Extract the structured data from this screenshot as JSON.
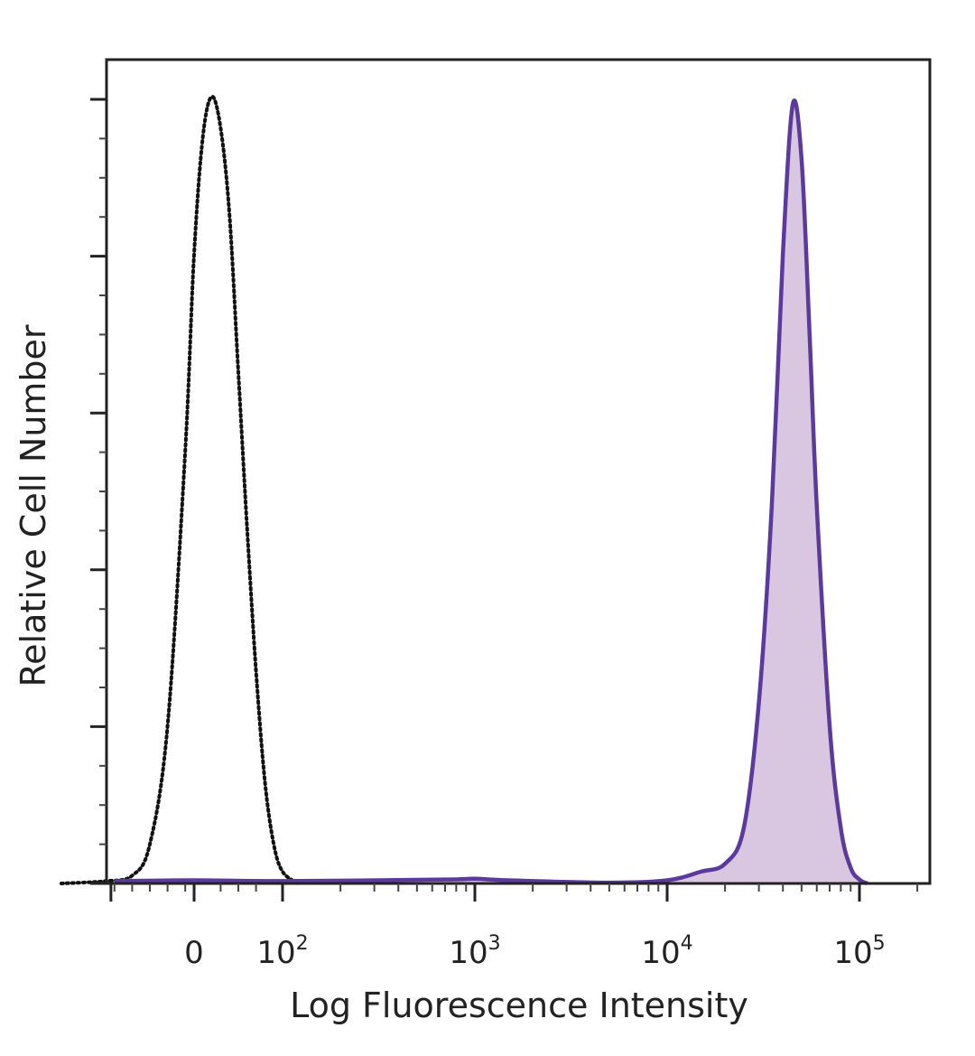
{
  "chart_data": {
    "type": "area",
    "title": "",
    "xlabel": "Log Fluorescence Intensity",
    "ylabel": "Relative Cell Number",
    "x_scale": "biexponential",
    "x_tick_labels": [
      {
        "base": "0",
        "exp": ""
      },
      {
        "base": "10",
        "exp": "2"
      },
      {
        "base": "10",
        "exp": "3"
      },
      {
        "base": "10",
        "exp": "4"
      },
      {
        "base": "10",
        "exp": "5"
      }
    ],
    "y_tick_count": 6,
    "ylim": [
      0,
      100
    ],
    "grid": false,
    "legend": "none",
    "series": [
      {
        "style": "dotted outline",
        "color": "#111111",
        "x": [
          -150,
          -100,
          -70,
          -50,
          -30,
          -10,
          0,
          10,
          20,
          30,
          40,
          50,
          60,
          70,
          80,
          90,
          100,
          120
        ],
        "values": [
          0,
          0.3,
          1,
          5,
          20,
          55,
          80,
          95,
          100,
          96,
          85,
          65,
          45,
          27,
          13,
          5,
          1.5,
          0
        ]
      },
      {
        "style": "filled",
        "color": "#5b3a9e",
        "fill": "#d9c7e2",
        "x": [
          -90,
          0,
          100,
          700,
          1000,
          1500,
          5000,
          10000,
          15000,
          20000,
          25000,
          30000,
          35000,
          40000,
          45000,
          50000,
          55000,
          60000,
          70000,
          80000,
          90000,
          100000,
          110000
        ],
        "values": [
          0.3,
          0.4,
          0.3,
          0.5,
          0.6,
          0.4,
          0.1,
          0.4,
          1.5,
          2.5,
          7,
          23,
          48,
          80,
          99,
          92,
          70,
          48,
          20,
          7,
          2,
          0.5,
          0
        ]
      }
    ]
  }
}
